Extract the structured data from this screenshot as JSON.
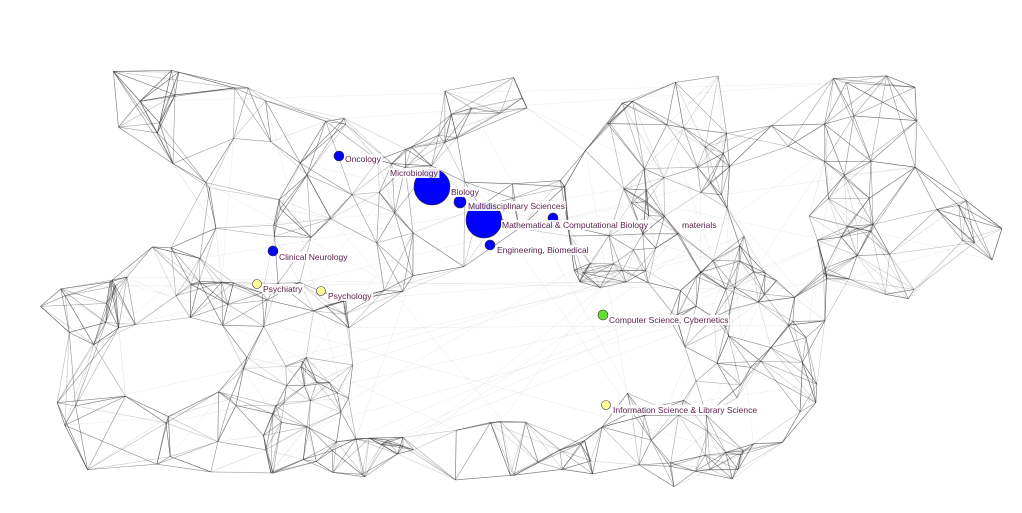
{
  "colors": {
    "biomed_node": "#0000ff",
    "social_node": "#ffff99",
    "cs_node": "#66dd33",
    "edge": "#333333",
    "label_text": "#5a1f4a"
  },
  "nodes": [
    {
      "id": "oncology",
      "label": "Oncology",
      "group": "biomed_node"
    },
    {
      "id": "microbiology",
      "label": "Microbiology",
      "group": "biomed_node"
    },
    {
      "id": "biology",
      "label": "Biology",
      "group": "biomed_node"
    },
    {
      "id": "multidisciplinary",
      "label": "Multidisciplinary Sciences",
      "group": "biomed_node"
    },
    {
      "id": "mathbio",
      "label": "Mathematical & Computational Biology",
      "group": "biomed_node"
    },
    {
      "id": "materials",
      "label": "materials",
      "group": "biomed_node"
    },
    {
      "id": "engbiomed",
      "label": "Engineering, Biomedical",
      "group": "biomed_node"
    },
    {
      "id": "clinneuro",
      "label": "Clinical Neurology",
      "group": "biomed_node"
    },
    {
      "id": "psychiatry",
      "label": "Psychiatry",
      "group": "social_node"
    },
    {
      "id": "psychology",
      "label": "Psychology",
      "group": "social_node"
    },
    {
      "id": "cscyber",
      "label": "Computer Science, Cybernetics",
      "group": "cs_node"
    },
    {
      "id": "infolib",
      "label": "Information Science & Library Science",
      "group": "social_node"
    }
  ]
}
